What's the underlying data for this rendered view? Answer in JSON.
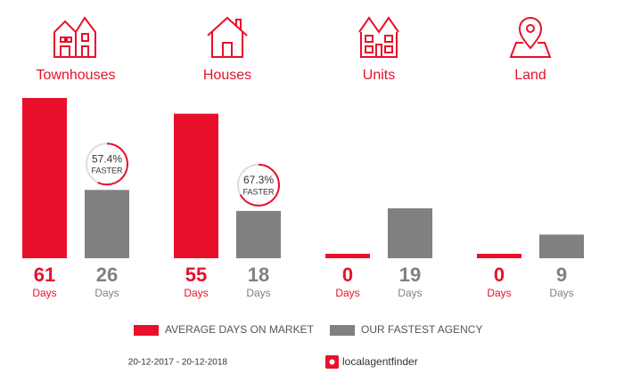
{
  "chart_data": {
    "type": "bar",
    "categories": [
      "Townhouses",
      "Houses",
      "Units",
      "Land"
    ],
    "series": [
      {
        "name": "AVERAGE DAYS ON MARKET",
        "color": "#e8102a",
        "values": [
          61,
          55,
          0,
          0
        ]
      },
      {
        "name": "OUR FASTEST AGENCY",
        "color": "#808080",
        "values": [
          26,
          18,
          19,
          9
        ]
      }
    ],
    "unit_label": "Days",
    "faster": {
      "values": [
        57.4,
        67.3,
        null,
        null
      ],
      "value_labels": [
        "57.4%",
        "67.3%",
        null,
        null
      ],
      "label": "FASTER"
    },
    "date_range": "20-12-2017 - 20-12-2018",
    "logo": "localagentfinder"
  }
}
